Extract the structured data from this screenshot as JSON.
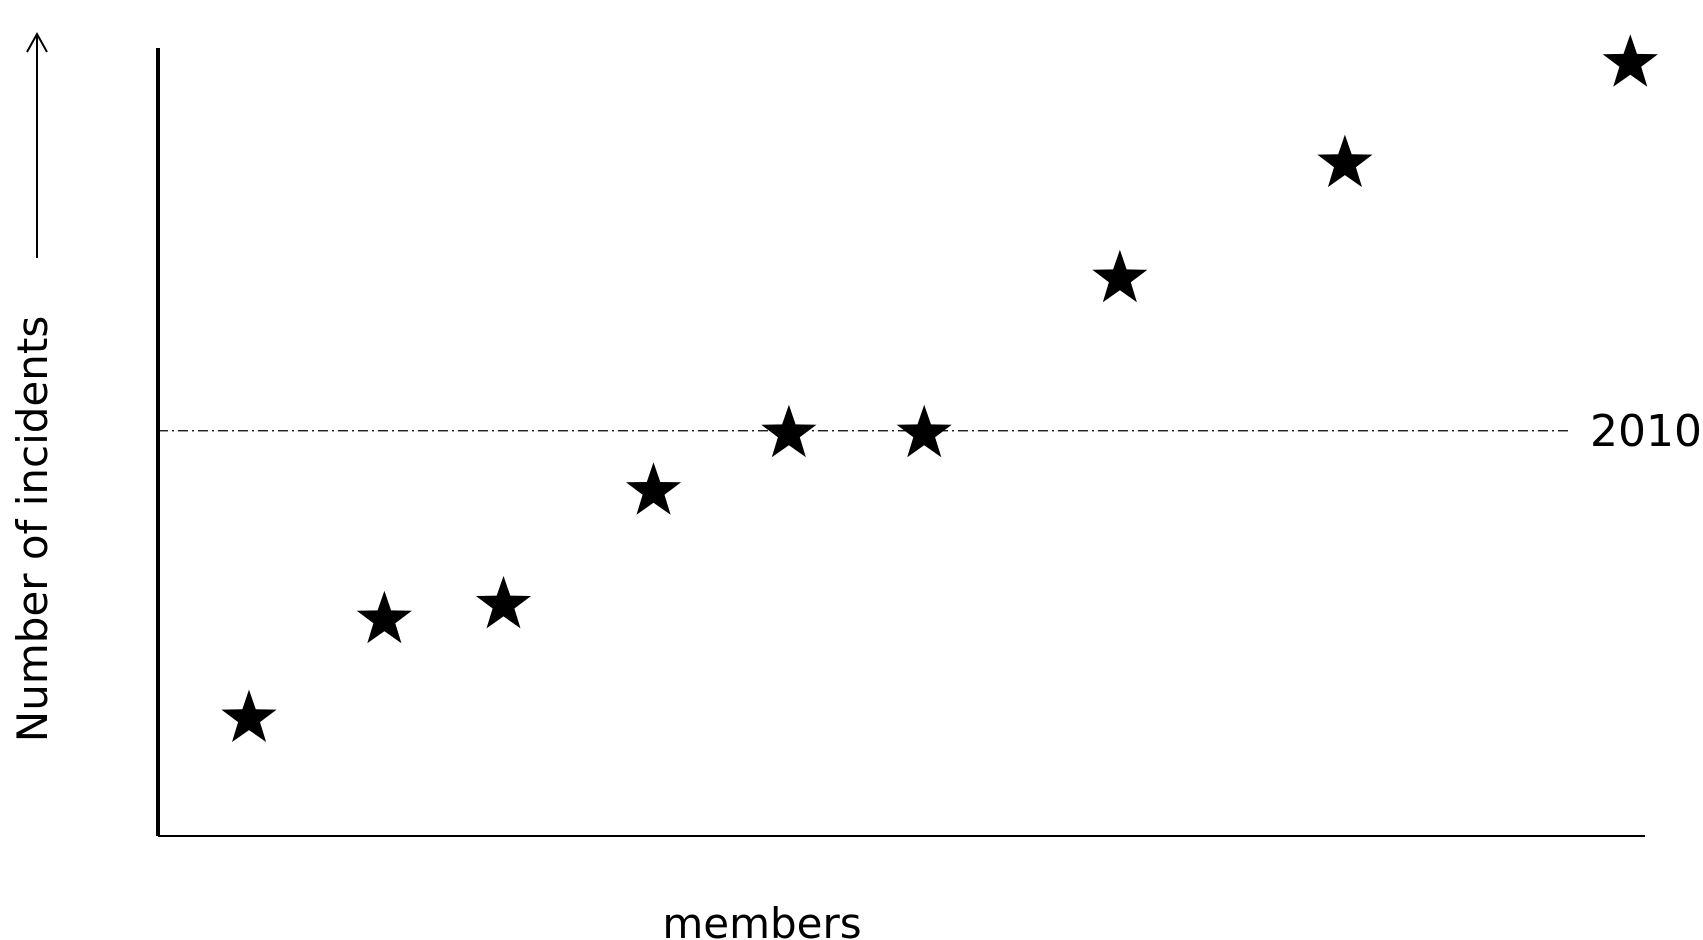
{
  "chart_data": {
    "type": "scatter",
    "marker": "star",
    "xlabel": "members",
    "ylabel": "Number of incidents",
    "x_range": [
      0,
      100
    ],
    "y_range": [
      0,
      100
    ],
    "points": [
      {
        "x": 5.1,
        "y": 13.2
      },
      {
        "x": 14.3,
        "y": 26.6
      },
      {
        "x": 22.4,
        "y": 28.6
      },
      {
        "x": 32.6,
        "y": 44.0
      },
      {
        "x": 41.8,
        "y": 51.8
      },
      {
        "x": 51.0,
        "y": 51.8
      },
      {
        "x": 64.3,
        "y": 72.8
      },
      {
        "x": 79.6,
        "y": 88.4
      },
      {
        "x": 99.0,
        "y": 102.0
      }
    ],
    "reference_line": {
      "y": 52.2,
      "label": "2010"
    },
    "grid": false,
    "legend": "none",
    "colors": {
      "marker": "#000000",
      "axis": "#000000"
    }
  }
}
